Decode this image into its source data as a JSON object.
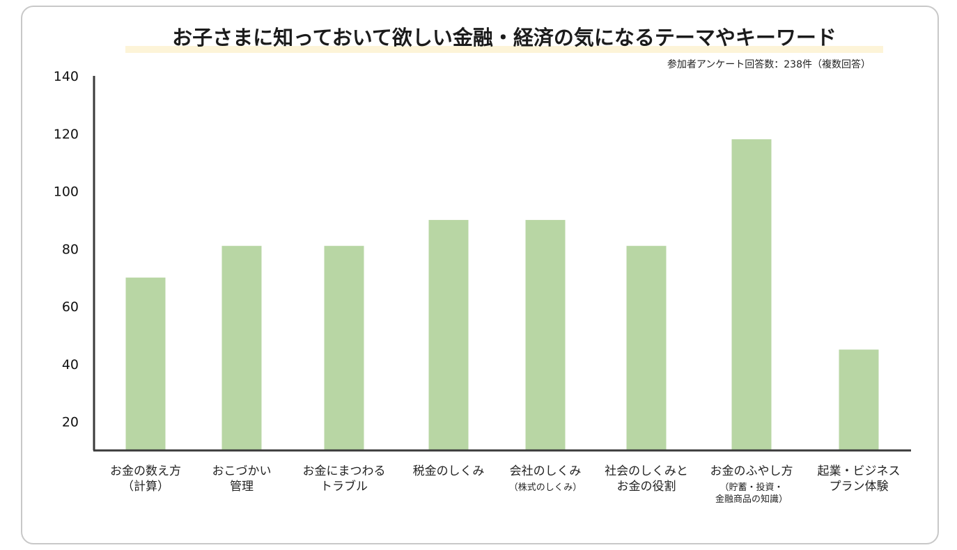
{
  "chart_data": {
    "type": "bar",
    "title": "お子さまに知っておいて欲しい金融・経済の気になるテーマやキーワード",
    "subtitle": "参加者アンケート回答数：238件（複数回答）",
    "categories": [
      {
        "lines": [
          "お金の数え方",
          "（計算）"
        ],
        "small": false
      },
      {
        "lines": [
          "おこづかい",
          "管理"
        ],
        "small": false
      },
      {
        "lines": [
          "お金にまつわる",
          "トラブル"
        ],
        "small": false
      },
      {
        "lines": [
          "税金のしくみ"
        ],
        "small": false
      },
      {
        "lines": [
          "会社のしくみ",
          "（株式のしくみ）"
        ],
        "small": true
      },
      {
        "lines": [
          "社会のしくみと",
          "お金の役割"
        ],
        "small": false
      },
      {
        "lines": [
          "お金のふやし方",
          "（貯蓄・投資・",
          "金融商品の知識）"
        ],
        "small": true
      },
      {
        "lines": [
          "起業・ビジネス",
          "プラン体験"
        ],
        "small": false
      }
    ],
    "values": [
      70,
      81,
      81,
      90,
      90,
      81,
      118,
      45
    ],
    "yticks": [
      20,
      40,
      60,
      80,
      100,
      120,
      140
    ],
    "ylim": [
      10,
      140
    ],
    "bar_color": "#b8d6a4",
    "axis_color": "#3a3a3a",
    "legend": "none",
    "grid": false
  }
}
